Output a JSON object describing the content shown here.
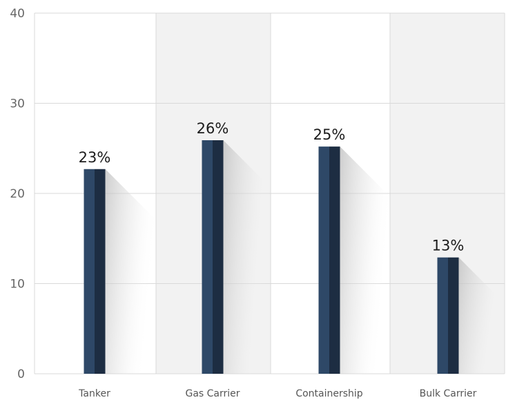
{
  "chart_data": {
    "type": "bar",
    "categories": [
      "Tanker",
      "Gas Carrier",
      "Containership",
      "Bulk Carrier"
    ],
    "values": [
      22.7,
      25.9,
      25.2,
      12.9
    ],
    "data_labels": [
      "23%",
      "26%",
      "25%",
      "13%"
    ],
    "title": "",
    "xlabel": "",
    "ylabel": "",
    "ylim": [
      0,
      40
    ],
    "yticks": [
      0,
      10,
      20,
      30,
      40
    ],
    "grid": true,
    "legend": "none"
  },
  "colors": {
    "bar_light": "#2e4867",
    "bar_dark": "#1d2d42",
    "band_shade": "#f2f2f2",
    "gridline": "#d9d9d9",
    "shadow": "#bfbfbf"
  }
}
